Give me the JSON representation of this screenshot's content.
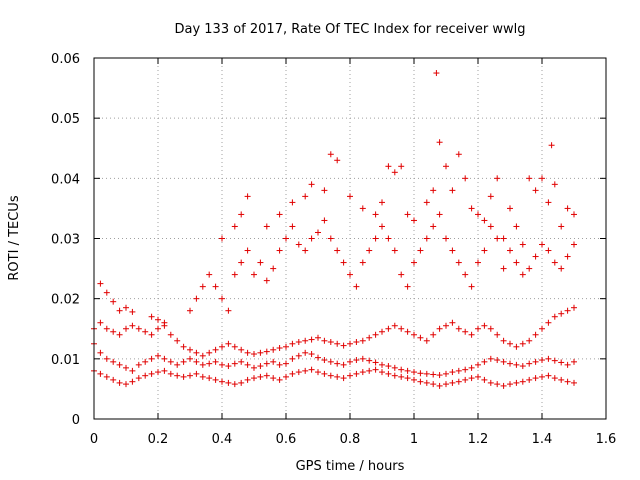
{
  "chart_data": {
    "type": "scatter",
    "title": "Day 133 of 2017, Rate Of TEC Index for receiver wwlg",
    "xlabel": "GPS time / hours",
    "ylabel": "ROTI / TECUs",
    "xlim": [
      0,
      1.6
    ],
    "ylim": [
      0,
      0.06
    ],
    "xticks": [
      0,
      0.2,
      0.4,
      0.6,
      0.8,
      1,
      1.2,
      1.4,
      1.6
    ],
    "xtick_labels": [
      "0",
      "0.2",
      "0.4",
      "0.6",
      "0.8",
      "1",
      "1.2",
      "1.4",
      "1.6"
    ],
    "yticks": [
      0,
      0.01,
      0.02,
      0.03,
      0.04,
      0.05,
      0.06
    ],
    "ytick_labels": [
      "0",
      "0.01",
      "0.02",
      "0.03",
      "0.04",
      "0.05",
      "0.06"
    ],
    "grid": true,
    "marker": "plus",
    "color": "#e00000",
    "series": [
      {
        "x": [
          0.0,
          0.02,
          0.04,
          0.06,
          0.08,
          0.1,
          0.12,
          0.14,
          0.16,
          0.18,
          0.2,
          0.22,
          0.24,
          0.26,
          0.28,
          0.3,
          0.32,
          0.34,
          0.36,
          0.38,
          0.4,
          0.42,
          0.44,
          0.46,
          0.48,
          0.5,
          0.52,
          0.54,
          0.56,
          0.58,
          0.6,
          0.62,
          0.64,
          0.66,
          0.68,
          0.7,
          0.72,
          0.74,
          0.76,
          0.78,
          0.8,
          0.82,
          0.84,
          0.86,
          0.88,
          0.9,
          0.92,
          0.94,
          0.96,
          0.98,
          1.0,
          1.02,
          1.04,
          1.06,
          1.08,
          1.1,
          1.12,
          1.14,
          1.16,
          1.18,
          1.2,
          1.22,
          1.24,
          1.26,
          1.28,
          1.3,
          1.32,
          1.34,
          1.36,
          1.38,
          1.4,
          1.42,
          1.44,
          1.46,
          1.48,
          1.5
        ],
        "y": [
          0.0125,
          0.011,
          0.01,
          0.0095,
          0.009,
          0.0085,
          0.008,
          0.009,
          0.0095,
          0.01,
          0.0105,
          0.01,
          0.0095,
          0.009,
          0.0095,
          0.01,
          0.0095,
          0.009,
          0.0092,
          0.0095,
          0.009,
          0.0088,
          0.0092,
          0.0095,
          0.009,
          0.0085,
          0.0088,
          0.0092,
          0.0095,
          0.009,
          0.0092,
          0.01,
          0.0105,
          0.011,
          0.0108,
          0.0102,
          0.0098,
          0.0095,
          0.0092,
          0.009,
          0.0095,
          0.0098,
          0.01,
          0.0097,
          0.0094,
          0.009,
          0.0088,
          0.0085,
          0.0082,
          0.008,
          0.0078,
          0.0076,
          0.0075,
          0.0074,
          0.0073,
          0.0075,
          0.0078,
          0.008,
          0.0082,
          0.0085,
          0.009,
          0.0095,
          0.01,
          0.0098,
          0.0095,
          0.0092,
          0.009,
          0.0088,
          0.0092,
          0.0095,
          0.0098,
          0.01,
          0.0097,
          0.0094,
          0.009,
          0.0095
        ]
      },
      {
        "x": [
          0.0,
          0.02,
          0.04,
          0.06,
          0.08,
          0.1,
          0.12,
          0.14,
          0.16,
          0.18,
          0.2,
          0.22,
          0.24,
          0.26,
          0.28,
          0.3,
          0.32,
          0.34,
          0.36,
          0.38,
          0.4,
          0.42,
          0.44,
          0.46,
          0.48,
          0.5,
          0.52,
          0.54,
          0.56,
          0.58,
          0.6,
          0.62,
          0.64,
          0.66,
          0.68,
          0.7,
          0.72,
          0.74,
          0.76,
          0.78,
          0.8,
          0.82,
          0.84,
          0.86,
          0.88,
          0.9,
          0.92,
          0.94,
          0.96,
          0.98,
          1.0,
          1.02,
          1.04,
          1.06,
          1.08,
          1.1,
          1.12,
          1.14,
          1.16,
          1.18,
          1.2,
          1.22,
          1.24,
          1.26,
          1.28,
          1.3,
          1.32,
          1.34,
          1.36,
          1.38,
          1.4,
          1.42,
          1.44,
          1.46,
          1.48,
          1.5
        ],
        "y": [
          0.008,
          0.0075,
          0.007,
          0.0065,
          0.006,
          0.0058,
          0.0062,
          0.0068,
          0.0072,
          0.0075,
          0.0078,
          0.008,
          0.0075,
          0.0072,
          0.007,
          0.0072,
          0.0075,
          0.007,
          0.0068,
          0.0065,
          0.0062,
          0.006,
          0.0058,
          0.006,
          0.0065,
          0.0068,
          0.007,
          0.0072,
          0.0068,
          0.0065,
          0.007,
          0.0075,
          0.0078,
          0.008,
          0.0082,
          0.0078,
          0.0075,
          0.0072,
          0.007,
          0.0068,
          0.0072,
          0.0075,
          0.0078,
          0.008,
          0.0082,
          0.0078,
          0.0075,
          0.0072,
          0.007,
          0.0068,
          0.0065,
          0.0062,
          0.006,
          0.0058,
          0.0055,
          0.0058,
          0.006,
          0.0062,
          0.0065,
          0.0068,
          0.007,
          0.0065,
          0.006,
          0.0058,
          0.0055,
          0.0058,
          0.006,
          0.0062,
          0.0065,
          0.0068,
          0.007,
          0.0072,
          0.0068,
          0.0065,
          0.0062,
          0.006
        ]
      },
      {
        "x": [
          0.0,
          0.02,
          0.04,
          0.06,
          0.08,
          0.1,
          0.12,
          0.14,
          0.16,
          0.18,
          0.2,
          0.22,
          0.24,
          0.26,
          0.28,
          0.3,
          0.32,
          0.34,
          0.36,
          0.38,
          0.4,
          0.42,
          0.44,
          0.46,
          0.48,
          0.5,
          0.52,
          0.54,
          0.56,
          0.58,
          0.6,
          0.62,
          0.64,
          0.66,
          0.68,
          0.7,
          0.72,
          0.74,
          0.76,
          0.78,
          0.8,
          0.82,
          0.84,
          0.86,
          0.88,
          0.9,
          0.92,
          0.94,
          0.96,
          0.98,
          1.0,
          1.02,
          1.04,
          1.06,
          1.08,
          1.1,
          1.12,
          1.14,
          1.16,
          1.18,
          1.2,
          1.22,
          1.24,
          1.26,
          1.28,
          1.3,
          1.32,
          1.34,
          1.36,
          1.38,
          1.4,
          1.42,
          1.44,
          1.46,
          1.48,
          1.5
        ],
        "y": [
          0.015,
          0.016,
          0.015,
          0.0145,
          0.014,
          0.015,
          0.0155,
          0.015,
          0.0145,
          0.014,
          0.015,
          0.0155,
          0.014,
          0.013,
          0.012,
          0.0115,
          0.011,
          0.0105,
          0.011,
          0.0115,
          0.012,
          0.0125,
          0.012,
          0.0115,
          0.011,
          0.0108,
          0.011,
          0.0112,
          0.0115,
          0.0118,
          0.012,
          0.0125,
          0.0128,
          0.013,
          0.0132,
          0.0135,
          0.013,
          0.0128,
          0.0125,
          0.0122,
          0.0125,
          0.0128,
          0.013,
          0.0135,
          0.014,
          0.0145,
          0.015,
          0.0155,
          0.015,
          0.0145,
          0.014,
          0.0135,
          0.013,
          0.014,
          0.015,
          0.0155,
          0.016,
          0.015,
          0.0145,
          0.014,
          0.015,
          0.0155,
          0.015,
          0.014,
          0.013,
          0.0125,
          0.012,
          0.0125,
          0.013,
          0.014,
          0.015,
          0.016,
          0.017,
          0.0175,
          0.018,
          0.0185
        ]
      },
      {
        "x": [
          0.02,
          0.04,
          0.06,
          0.08,
          0.1,
          0.12,
          0.18,
          0.2,
          0.22,
          0.3,
          0.32,
          0.34,
          0.36,
          0.38,
          0.4,
          0.42,
          0.44,
          0.46,
          0.48,
          0.5,
          0.52,
          0.54,
          0.56,
          0.58,
          0.6,
          0.62,
          0.64,
          0.66,
          0.68,
          0.7,
          0.72,
          0.74,
          0.76,
          0.78,
          0.8,
          0.82,
          0.84,
          0.86,
          0.88,
          0.9,
          0.92,
          0.94,
          0.96,
          0.98,
          1.0,
          1.02,
          1.04,
          1.06,
          1.08,
          1.1,
          1.12,
          1.14,
          1.16,
          1.18,
          1.2,
          1.22,
          1.24,
          1.26,
          1.28,
          1.3,
          1.32,
          1.34,
          1.36,
          1.38,
          1.4,
          1.42,
          1.44,
          1.46,
          1.48,
          1.5
        ],
        "y": [
          0.0225,
          0.021,
          0.0195,
          0.018,
          0.0185,
          0.0178,
          0.017,
          0.0165,
          0.016,
          0.018,
          0.02,
          0.022,
          0.024,
          0.022,
          0.02,
          0.018,
          0.024,
          0.026,
          0.028,
          0.024,
          0.026,
          0.023,
          0.025,
          0.028,
          0.03,
          0.032,
          0.029,
          0.028,
          0.03,
          0.031,
          0.033,
          0.03,
          0.028,
          0.026,
          0.024,
          0.022,
          0.026,
          0.028,
          0.03,
          0.032,
          0.03,
          0.028,
          0.024,
          0.022,
          0.026,
          0.028,
          0.03,
          0.032,
          0.034,
          0.03,
          0.028,
          0.026,
          0.024,
          0.022,
          0.026,
          0.028,
          0.032,
          0.03,
          0.025,
          0.028,
          0.026,
          0.024,
          0.025,
          0.027,
          0.029,
          0.028,
          0.026,
          0.025,
          0.027,
          0.029
        ]
      },
      {
        "x": [
          0.4,
          0.44,
          0.46,
          0.48,
          0.54,
          0.58,
          0.62,
          0.66,
          0.68,
          0.72,
          0.74,
          0.76,
          0.8,
          0.84,
          0.88,
          0.9,
          0.92,
          0.94,
          0.96,
          0.98,
          1.0,
          1.04,
          1.06,
          1.07,
          1.08,
          1.1,
          1.12,
          1.14,
          1.16,
          1.18,
          1.2,
          1.22,
          1.24,
          1.26,
          1.28,
          1.3,
          1.32,
          1.34,
          1.36,
          1.38,
          1.4,
          1.42,
          1.43,
          1.44,
          1.46,
          1.48,
          1.5
        ],
        "y": [
          0.03,
          0.032,
          0.034,
          0.037,
          0.032,
          0.034,
          0.036,
          0.037,
          0.039,
          0.038,
          0.044,
          0.043,
          0.037,
          0.035,
          0.034,
          0.036,
          0.042,
          0.041,
          0.042,
          0.034,
          0.033,
          0.036,
          0.038,
          0.0575,
          0.046,
          0.042,
          0.038,
          0.044,
          0.04,
          0.035,
          0.034,
          0.033,
          0.037,
          0.04,
          0.03,
          0.035,
          0.032,
          0.029,
          0.04,
          0.038,
          0.04,
          0.036,
          0.0455,
          0.039,
          0.032,
          0.035,
          0.034
        ]
      }
    ]
  }
}
